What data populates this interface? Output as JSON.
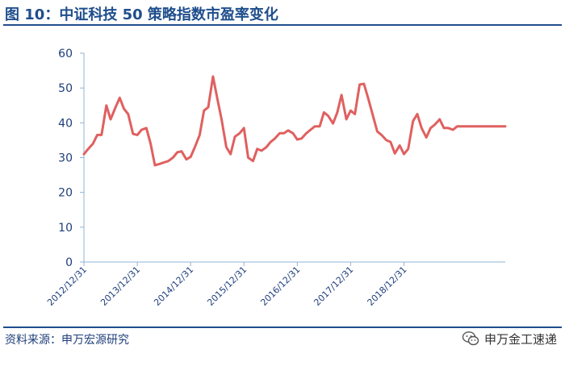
{
  "title": "图 10：中证科技 50 策略指数市盈率变化",
  "source": "资料来源：申万宏源研究",
  "brand": "申万金工速递",
  "chart_data": {
    "type": "line",
    "ylim": [
      0,
      60
    ],
    "yticks": [
      0,
      10,
      20,
      30,
      40,
      50,
      60
    ],
    "grid": false,
    "line_color": "#e06060",
    "x_tick_labels": [
      "2012/12/31",
      "2013/12/31",
      "2014/12/31",
      "2015/12/31",
      "2016/12/31",
      "2017/12/31",
      "2018/12/31"
    ],
    "x_range": [
      2012.0,
      2019.9
    ],
    "series": [
      {
        "x": [
          2012.0,
          2012.08,
          2012.17,
          2012.25,
          2012.33,
          2012.42,
          2012.5,
          2012.58,
          2012.67,
          2012.75,
          2012.83,
          2012.92,
          2013.0,
          2013.08,
          2013.17,
          2013.25,
          2013.33,
          2013.42,
          2013.5,
          2013.58,
          2013.67,
          2013.75,
          2013.83,
          2013.92,
          2014.0,
          2014.08,
          2014.17,
          2014.25,
          2014.33,
          2014.42,
          2014.5,
          2014.58,
          2014.67,
          2014.75,
          2014.83,
          2014.92,
          2015.0,
          2015.08,
          2015.17,
          2015.25,
          2015.33,
          2015.42,
          2015.5,
          2015.58,
          2015.67,
          2015.75,
          2015.83,
          2015.92,
          2016.0,
          2016.08,
          2016.17,
          2016.25,
          2016.33,
          2016.42,
          2016.5,
          2016.58,
          2016.67,
          2016.75,
          2016.83,
          2016.92,
          2017.0,
          2017.08,
          2017.17,
          2017.25,
          2017.33,
          2017.42,
          2017.5,
          2017.58,
          2017.67,
          2017.75,
          2017.83,
          2017.92,
          2018.0,
          2018.08,
          2018.17,
          2018.25,
          2018.33,
          2018.42,
          2018.5,
          2018.58,
          2018.67,
          2018.75,
          2018.83,
          2018.92,
          2019.0,
          2019.08,
          2019.17,
          2019.25,
          2019.33,
          2019.42,
          2019.5,
          2019.58,
          2019.67,
          2019.75,
          2019.83,
          2019.9
        ],
        "values": [
          31.0,
          32.5,
          34.0,
          36.5,
          36.5,
          45.0,
          41.0,
          44.0,
          47.2,
          44.0,
          42.5,
          36.8,
          36.5,
          38.0,
          38.5,
          34.0,
          27.8,
          28.2,
          28.6,
          29.0,
          30.0,
          31.5,
          31.8,
          29.5,
          30.2,
          33.0,
          36.5,
          43.5,
          44.5,
          53.3,
          47.0,
          41.0,
          33.0,
          31.0,
          36.0,
          37.0,
          38.5,
          30.0,
          29.0,
          32.5,
          32.0,
          33.0,
          34.5,
          35.5,
          37.0,
          37.0,
          37.8,
          37.0,
          35.2,
          35.5,
          37.0,
          38.0,
          39.0,
          39.0,
          43.0,
          42.0,
          39.8,
          43.0,
          48.0,
          41.0,
          43.5,
          42.5,
          51.0,
          51.2,
          47.0,
          42.0,
          37.5,
          36.5,
          35.0,
          34.5,
          31.2,
          33.5,
          31.0,
          32.5,
          40.5,
          42.5,
          38.5,
          35.8,
          38.5,
          39.5,
          41.0,
          38.5,
          38.5,
          38.0,
          39.0,
          39.0,
          39.0,
          39.0,
          39.0,
          39.0,
          39.0,
          39.0,
          39.0,
          39.0,
          39.0,
          39.0
        ]
      }
    ]
  }
}
